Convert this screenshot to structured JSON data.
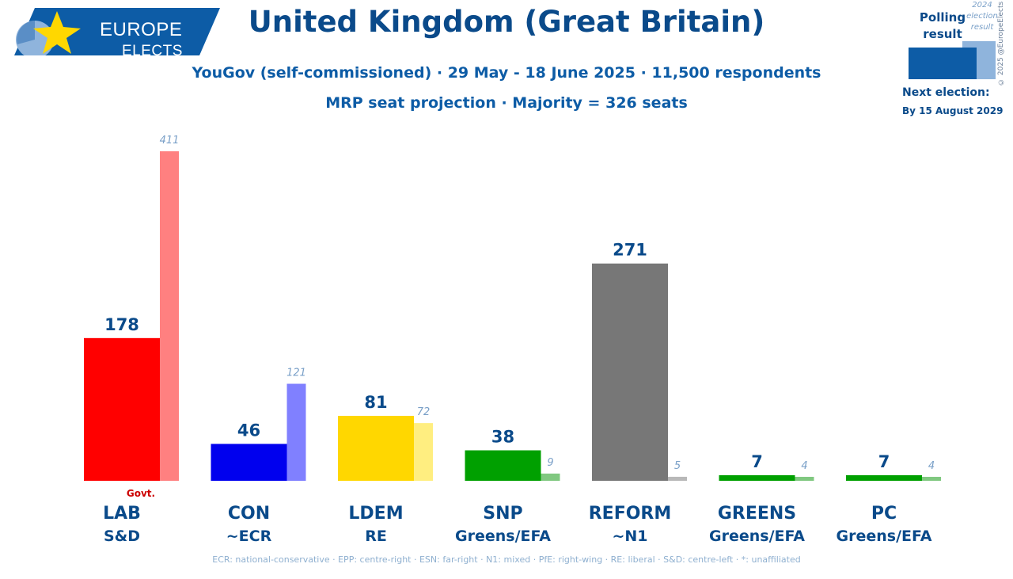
{
  "logo": {
    "line1": "EUROPE",
    "line2": "ELECTS"
  },
  "header": {
    "title": "United Kingdom (Great Britain)",
    "subtitle": "YouGov (self-commissioned) · 29 May - 18 June 2025 · 11,500 respondents",
    "subtitle2": "MRP seat projection · Majority = 326 seats"
  },
  "legend": {
    "polling_label": "Polling result",
    "previous_label": "2024 election result",
    "copyright": "© 2025 @EuropeElects",
    "next_election_label": "Next election:",
    "next_election_value": "By 15 August 2029"
  },
  "chart_data": {
    "type": "bar",
    "title": "United Kingdom (Great Britain)",
    "categories": [
      "LAB",
      "CON",
      "LDEM",
      "SNP",
      "REFORM",
      "GREENS",
      "PC"
    ],
    "groups": [
      "S&D",
      "~ECR",
      "RE",
      "Greens/EFA",
      "~N1",
      "Greens/EFA",
      "Greens/EFA"
    ],
    "series": [
      {
        "name": "Polling result",
        "values": [
          178,
          46,
          81,
          38,
          271,
          7,
          7
        ]
      },
      {
        "name": "2024 election result",
        "values": [
          411,
          121,
          72,
          9,
          5,
          4,
          4
        ]
      }
    ],
    "colors": [
      "#ff0000",
      "#0000ee",
      "#ffd700",
      "#00a000",
      "#777777",
      "#00a000",
      "#00a000"
    ],
    "prev_colors": [
      "#ff8080",
      "#8080ff",
      "#ffee80",
      "#80c880",
      "#b8b8b8",
      "#80c880",
      "#80c880"
    ],
    "annotations": [
      {
        "category": "LAB",
        "text": "Govt.",
        "color": "#cc0000"
      }
    ],
    "ylim": [
      0,
      411
    ],
    "grid": false
  },
  "footer": "ECR: national-conservative · EPP: centre-right · ESN: far-right · N1: mixed · PfE: right-wing · RE: liberal · S&D: centre-left · *: unaffiliated"
}
